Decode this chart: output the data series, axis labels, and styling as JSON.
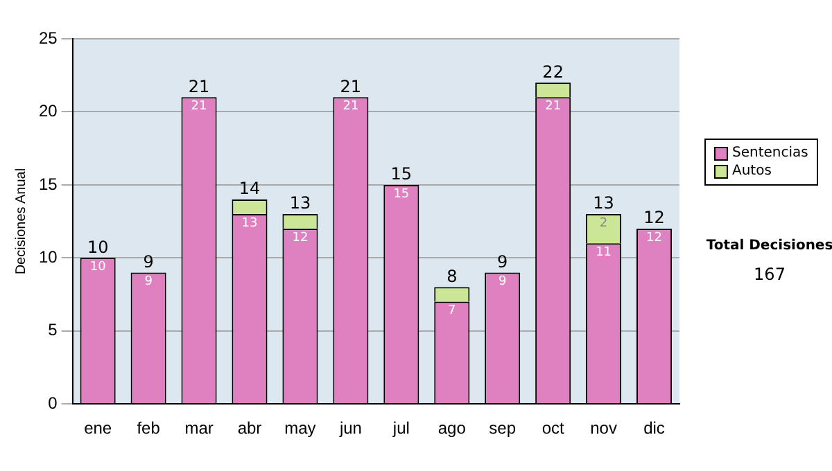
{
  "chart_data": {
    "type": "bar",
    "ylabel": "Decisiones Anual",
    "categories": [
      "ene",
      "feb",
      "mar",
      "abr",
      "may",
      "jun",
      "jul",
      "ago",
      "sep",
      "oct",
      "nov",
      "dic"
    ],
    "stacked": true,
    "series": [
      {
        "name": "Sentencias",
        "color": "#df80c0",
        "values": [
          10,
          9,
          21,
          13,
          12,
          21,
          15,
          7,
          9,
          21,
          11,
          12
        ],
        "value_labels": [
          "10",
          "9",
          "21",
          "13",
          "12",
          "21",
          "15",
          "7",
          "9",
          "21",
          "11",
          "12"
        ]
      },
      {
        "name": "Autos",
        "color": "#cce698",
        "values": [
          0,
          0,
          0,
          1,
          1,
          0,
          0,
          1,
          0,
          1,
          2,
          0
        ],
        "value_labels": [
          null,
          null,
          null,
          null,
          null,
          null,
          null,
          null,
          null,
          null,
          "2",
          null
        ]
      }
    ],
    "totals": [
      "10",
      "9",
      "21",
      "14",
      "13",
      "21",
      "15",
      "8",
      "9",
      "22",
      "13",
      "12"
    ],
    "ylim": [
      0,
      25
    ],
    "yticks": [
      0,
      5,
      10,
      15,
      20,
      25
    ],
    "grid": "y",
    "legend": "right",
    "annotations": [
      "Total Decisiones",
      "167"
    ]
  }
}
